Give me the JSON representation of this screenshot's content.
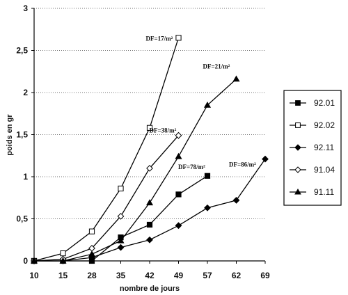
{
  "chart_data": {
    "type": "line",
    "title": "",
    "xlabel": "nombre de jours",
    "ylabel": "poids en gr",
    "categories": [
      "10",
      "15",
      "28",
      "35",
      "42",
      "49",
      "57",
      "62",
      "69"
    ],
    "ylim": [
      0,
      3
    ],
    "yticks": [
      "0",
      "0,5",
      "1",
      "1,5",
      "2",
      "2,5",
      "3"
    ],
    "grid": "horizontal dotted",
    "legend_position": "right",
    "series": [
      {
        "name": "92.01",
        "marker": "filled-square",
        "x": [
          "10",
          "15",
          "28",
          "35",
          "42",
          "49",
          "57"
        ],
        "values": [
          0,
          0,
          0,
          0.28,
          0.43,
          0.79,
          1.01
        ]
      },
      {
        "name": "92.02",
        "marker": "open-square",
        "x": [
          "10",
          "15",
          "28",
          "35",
          "42",
          "49"
        ],
        "values": [
          0,
          0.09,
          0.35,
          0.86,
          1.58,
          2.65
        ]
      },
      {
        "name": "92.11",
        "marker": "filled-diamond",
        "x": [
          "10",
          "15",
          "28",
          "35",
          "42",
          "49",
          "57",
          "62",
          "69"
        ],
        "values": [
          0,
          0,
          0.04,
          0.16,
          0.25,
          0.42,
          0.63,
          0.72,
          1.21
        ]
      },
      {
        "name": "91.04",
        "marker": "open-diamond",
        "x": [
          "10",
          "15",
          "28",
          "35",
          "42",
          "49"
        ],
        "values": [
          0,
          0.02,
          0.15,
          0.53,
          1.1,
          1.49
        ]
      },
      {
        "name": "91.11",
        "marker": "filled-triangle",
        "x": [
          "10",
          "15",
          "28",
          "35",
          "42",
          "49",
          "57",
          "62"
        ],
        "values": [
          0,
          0,
          0.08,
          0.24,
          0.69,
          1.24,
          1.85,
          2.16
        ]
      }
    ],
    "annotations": [
      {
        "text": "DF=17/m²",
        "x": "49",
        "y": 2.65
      },
      {
        "text": "DF=21/m²",
        "x": "62",
        "y": 2.16
      },
      {
        "text": "DF=38/m²",
        "x": "49",
        "y": 1.49
      },
      {
        "text": "DF=78/m²",
        "x": "57",
        "y": 1.01
      },
      {
        "text": "DF=86/m²",
        "x": "69",
        "y": 1.21
      }
    ]
  }
}
